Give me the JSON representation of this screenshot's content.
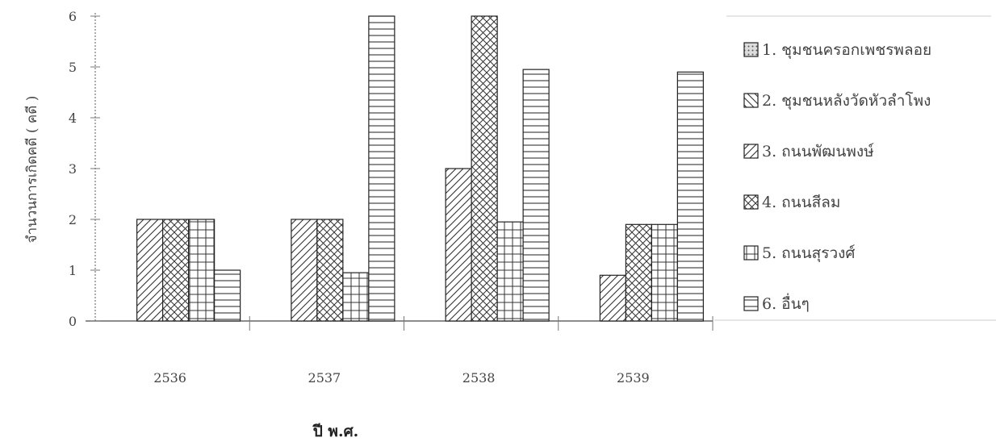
{
  "chart_data": {
    "type": "bar",
    "categories": [
      "2536",
      "2537",
      "2538",
      "2539"
    ],
    "xlabel": "ปี พ.ศ.",
    "ylabel": "จำนวนการเกิดคดี ( คดี )",
    "ylim": [
      0,
      6
    ],
    "yticks": [
      "0",
      "1",
      "2",
      "3",
      "4",
      "5",
      "6"
    ],
    "grid": false,
    "legend_position": "right",
    "series": [
      {
        "name": "1. ชุมชนครอกเพชรพลอย",
        "pattern": "dots",
        "values": [
          0,
          0,
          0,
          0
        ]
      },
      {
        "name": "2. ชุมชนหลังวัดหัวลำโพง",
        "pattern": "backslash",
        "values": [
          0,
          0,
          0,
          0
        ]
      },
      {
        "name": "3. ถนนพัฒนพงษ์",
        "pattern": "slash",
        "values": [
          2,
          2,
          3,
          0.9
        ]
      },
      {
        "name": "4. ถนนสีลม",
        "pattern": "crosshatch",
        "values": [
          2,
          2,
          6,
          1.9
        ]
      },
      {
        "name": "5. ถนนสุรวงศ์",
        "pattern": "grid",
        "values": [
          2,
          0.95,
          1.95,
          1.9
        ]
      },
      {
        "name": "6. อื่นๆ",
        "pattern": "horizontal",
        "values": [
          1,
          6,
          4.95,
          4.9
        ]
      }
    ],
    "colors": {
      "stroke": "#333333",
      "axis": "#666666",
      "fill": "#ffffff"
    }
  }
}
